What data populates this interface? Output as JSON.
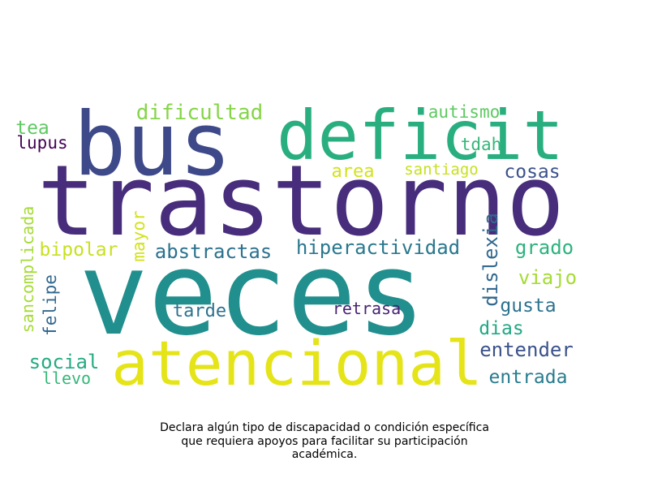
{
  "chart_data": {
    "type": "wordcloud",
    "colormap": "viridis",
    "background": "#ffffff",
    "words": [
      {
        "text": "veces",
        "color": "#218f8d"
      },
      {
        "text": "trastorno",
        "color": "#472d7b"
      },
      {
        "text": "bus",
        "color": "#3e4989"
      },
      {
        "text": "deficit",
        "color": "#29af7f"
      },
      {
        "text": "atencional",
        "color": "#e5e419"
      },
      {
        "text": "dificultad",
        "color": "#86d549"
      },
      {
        "text": "autismo",
        "color": "#5ec962"
      },
      {
        "text": "tea",
        "color": "#5ec962"
      },
      {
        "text": "lupus",
        "color": "#440154"
      },
      {
        "text": "tdah",
        "color": "#35b779"
      },
      {
        "text": "area",
        "color": "#d2e21b"
      },
      {
        "text": "santiago",
        "color": "#c8e020"
      },
      {
        "text": "cosas",
        "color": "#3b528b"
      },
      {
        "text": "sancomplicada",
        "color": "#a5db36"
      },
      {
        "text": "mayor",
        "color": "#d2e21b"
      },
      {
        "text": "bipolar",
        "color": "#c8e020"
      },
      {
        "text": "abstractas",
        "color": "#2c728e"
      },
      {
        "text": "hiperactividad",
        "color": "#2a788e"
      },
      {
        "text": "dislexia",
        "color": "#31688e"
      },
      {
        "text": "grado",
        "color": "#2db27d"
      },
      {
        "text": "felipe",
        "color": "#31688e"
      },
      {
        "text": "viajo",
        "color": "#a5db36"
      },
      {
        "text": "tarde",
        "color": "#2c728e"
      },
      {
        "text": "retrasa",
        "color": "#482374"
      },
      {
        "text": "gusta",
        "color": "#2c728e"
      },
      {
        "text": "dias",
        "color": "#22a884"
      },
      {
        "text": "social",
        "color": "#25ab82"
      },
      {
        "text": "entender",
        "color": "#3b528b"
      },
      {
        "text": "llevo",
        "color": "#35b779"
      },
      {
        "text": "entrada",
        "color": "#287c8e"
      }
    ]
  },
  "caption": {
    "line1": "Declara algún tipo de discapacidad o condición específica",
    "line2": "que requiera apoyos para facilitar su participación",
    "line3": "académica."
  }
}
